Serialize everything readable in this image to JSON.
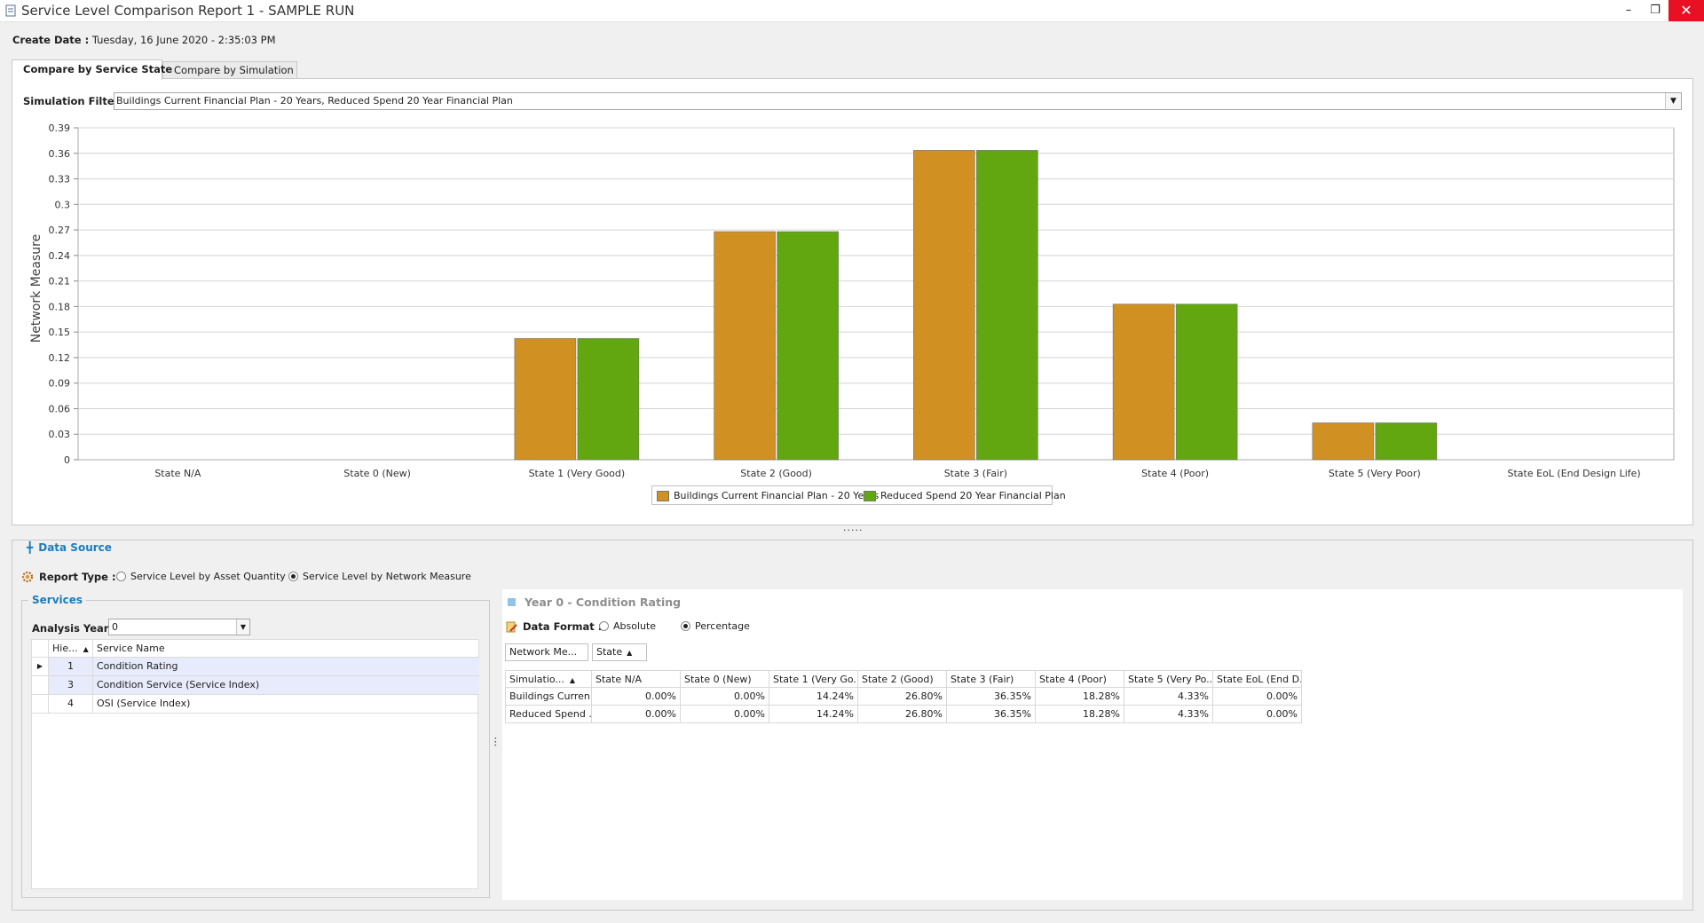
{
  "window": {
    "title": "Service Level Comparison Report 1 - SAMPLE RUN",
    "minimize_glyph": "–",
    "restore_glyph": "❐",
    "close_glyph": "✕"
  },
  "create_date": {
    "label": "Create Date :",
    "value": "Tuesday, 16 June 2020 - 2:35:03 PM"
  },
  "tabs": [
    {
      "label": "Compare by Service State",
      "active": true
    },
    {
      "label": "Compare by Simulation",
      "active": false
    }
  ],
  "simulation_filter": {
    "label": "Simulation Filter :",
    "value": "Buildings Current Financial Plan - 20 Years, Reduced Spend 20 Year Financial Plan"
  },
  "chart_data": {
    "type": "bar",
    "title": "",
    "xlabel": "",
    "ylabel": "Network Measure",
    "ylim": [
      0,
      0.39
    ],
    "yticks": [
      "0",
      "0.03",
      "0.06",
      "0.09",
      "0.12",
      "0.15",
      "0.18",
      "0.21",
      "0.24",
      "0.27",
      "0.3",
      "0.33",
      "0.36",
      "0.39"
    ],
    "grid": true,
    "legend": "bottom-center",
    "categories": [
      "State N/A",
      "State 0 (New)",
      "State 1 (Very Good)",
      "State 2 (Good)",
      "State 3 (Fair)",
      "State 4 (Poor)",
      "State 5 (Very Poor)",
      "State EoL (End Design Life)"
    ],
    "series": [
      {
        "name": "Buildings Current Financial Plan - 20 Years",
        "color": "#d09122",
        "values": [
          0,
          0,
          0.1424,
          0.268,
          0.3635,
          0.1828,
          0.0433,
          0
        ]
      },
      {
        "name": "Reduced Spend 20 Year Financial Plan",
        "color": "#62a70f",
        "values": [
          0,
          0,
          0.1424,
          0.268,
          0.3635,
          0.1828,
          0.0433,
          0
        ]
      }
    ]
  },
  "splitter": "·····",
  "data_source": {
    "title": "Data Source",
    "report_type": {
      "label": "Report Type :",
      "options": [
        {
          "label": "Service Level by Asset Quantity",
          "selected": false
        },
        {
          "label": "Service Level by Network Measure",
          "selected": true
        }
      ]
    },
    "services": {
      "title": "Services",
      "analysis_year_label": "Analysis Year :",
      "analysis_year_value": "0",
      "columns": [
        "Hie...",
        "Service Name"
      ],
      "rows": [
        {
          "id": "1",
          "name": "Condition Rating",
          "selected": true,
          "current": true
        },
        {
          "id": "3",
          "name": "Condition Service (Service Index)",
          "selected": true,
          "current": false
        },
        {
          "id": "4",
          "name": "OSI (Service Index)",
          "selected": false,
          "current": false
        }
      ]
    },
    "detail": {
      "title": "Year 0 - Condition Rating",
      "data_format_label": "Data Format :",
      "formats": [
        {
          "label": "Absolute",
          "selected": false
        },
        {
          "label": "Percentage",
          "selected": true
        }
      ],
      "filter_fields": [
        "Network Me...",
        "State"
      ],
      "row_field": "Simulatio...",
      "columns": [
        "State N/A",
        "State 0 (New)",
        "State 1 (Very Go...",
        "State 2 (Good)",
        "State 3 (Fair)",
        "State 4 (Poor)",
        "State 5 (Very Po...",
        "State EoL (End D..."
      ],
      "rows": [
        {
          "label": "Buildings Curren...",
          "values": [
            "0.00%",
            "0.00%",
            "14.24%",
            "26.80%",
            "36.35%",
            "18.28%",
            "4.33%",
            "0.00%"
          ]
        },
        {
          "label": "Reduced Spend ...",
          "values": [
            "0.00%",
            "0.00%",
            "14.24%",
            "26.80%",
            "36.35%",
            "18.28%",
            "4.33%",
            "0.00%"
          ]
        }
      ]
    }
  }
}
